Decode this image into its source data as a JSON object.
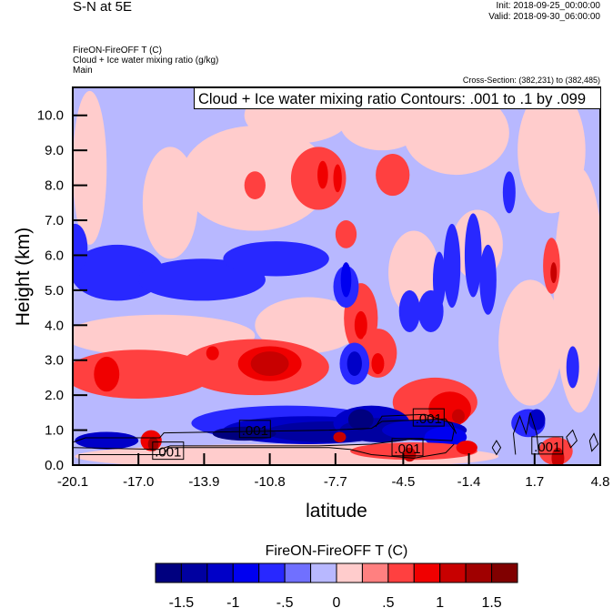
{
  "header": {
    "title": "S-N at 5E",
    "init": "Init: 2018-09-25_00:00:00",
    "valid": "Valid: 2018-09-30_06:00:00",
    "field1": "FireON-FireOFF T   (C)",
    "field2": "Cloud + Ice water mixing ratio   (g/kg)",
    "domain": "Main",
    "cross_section": "Cross-Section: (382,231) to (382,485)"
  },
  "chart_data": {
    "type": "heatmap",
    "title": "FireON-FireOFF T  (C)",
    "contour_info": "Cloud + Ice water mixing ratio Contours: .001 to .1 by .099",
    "xlabel": "latitude",
    "ylabel": "Height (km)",
    "xlim": [
      -20.1,
      4.8
    ],
    "ylim": [
      0,
      10.8
    ],
    "xticks": [
      -20.1,
      -17.0,
      -13.9,
      -10.8,
      -7.7,
      -4.5,
      -1.4,
      1.7,
      4.8
    ],
    "xtick_labels": [
      "-20.1",
      "-17.0",
      "-13.9",
      "-10.8",
      "-7.7",
      "-4.5",
      "-1.4",
      "1.7",
      "4.8"
    ],
    "yticks": [
      0,
      1,
      2,
      3,
      4,
      5,
      6,
      7,
      8,
      9,
      10
    ],
    "ytick_labels": [
      "0.0",
      "1.0",
      "2.0",
      "3.0",
      "4.0",
      "5.0",
      "6.0",
      "7.0",
      "8.0",
      "9.0",
      "10.0"
    ],
    "levels": [
      -1.5,
      -1.25,
      -1,
      -0.75,
      -0.5,
      -0.25,
      0,
      0.25,
      0.5,
      0.75,
      1,
      1.25,
      1.5
    ],
    "colors": [
      "#00007f",
      "#0000a0",
      "#0000c8",
      "#0000f0",
      "#2828ff",
      "#7070ff",
      "#b8b8ff",
      "#ffcccc",
      "#ff8080",
      "#ff4040",
      "#f00000",
      "#c80000",
      "#a00000",
      "#800000"
    ],
    "colorbar_labels": [
      "-1.5",
      "-1",
      "-.5",
      "0",
      ".5",
      "1",
      "1.5"
    ],
    "colorbar_label_levels": [
      -1.5,
      -1,
      -0.5,
      0,
      0.5,
      1,
      1.5
    ],
    "background_value": -0.1,
    "field_features_lat_z_rlat_rz_value": [
      [
        -19.3,
        8.5,
        0.8,
        2.2,
        0.1
      ],
      [
        -15.5,
        7.5,
        1.3,
        1.6,
        0.1
      ],
      [
        -11.5,
        8.2,
        3.5,
        1.5,
        0.1
      ],
      [
        -9.5,
        10,
        2.5,
        0.8,
        0.1
      ],
      [
        -5.5,
        9.8,
        2,
        0.8,
        0.1
      ],
      [
        -2,
        9.5,
        2.5,
        1.2,
        0.1
      ],
      [
        2.5,
        9,
        1.6,
        1.8,
        0.1
      ],
      [
        3.8,
        5,
        1.2,
        3.5,
        0.1
      ],
      [
        -4,
        5.5,
        1.2,
        1.2,
        0.1
      ],
      [
        -1,
        6.3,
        1.2,
        1,
        0.1
      ],
      [
        1.5,
        3.5,
        1.5,
        1.8,
        0.1
      ],
      [
        -16,
        3.7,
        4.5,
        0.6,
        0.1
      ],
      [
        -9,
        4.0,
        2.5,
        0.8,
        0.1
      ],
      [
        -8.5,
        8.2,
        1.3,
        0.9,
        0.6
      ],
      [
        -11.5,
        8.0,
        0.5,
        0.4,
        0.6
      ],
      [
        -7.2,
        6.6,
        0.5,
        0.4,
        0.6
      ],
      [
        -6.5,
        4.2,
        0.8,
        1.0,
        0.6
      ],
      [
        -5,
        8.3,
        0.8,
        0.6,
        0.6
      ],
      [
        2.5,
        5.7,
        0.4,
        0.8,
        0.6
      ],
      [
        -8.3,
        8.3,
        0.25,
        0.4,
        0.9
      ],
      [
        -7.6,
        8.2,
        0.2,
        0.4,
        0.9
      ],
      [
        -6.5,
        4.0,
        0.3,
        0.4,
        0.9
      ],
      [
        2.6,
        5.5,
        0.15,
        0.3,
        1.1
      ],
      [
        -18,
        5.5,
        2.2,
        0.8,
        -0.6
      ],
      [
        -14,
        5.3,
        3,
        0.6,
        -0.6
      ],
      [
        -10.5,
        5.9,
        2.5,
        0.5,
        -0.6
      ],
      [
        -20,
        6.2,
        0.6,
        0.7,
        -0.6
      ],
      [
        -7.2,
        5.1,
        0.6,
        0.6,
        -0.6
      ],
      [
        -7.2,
        5.3,
        0.25,
        0.5,
        -0.8
      ],
      [
        -4.2,
        4.4,
        0.5,
        0.6,
        -0.6
      ],
      [
        -3.2,
        4.4,
        0.6,
        0.6,
        -0.6
      ],
      [
        -2.2,
        5.7,
        0.4,
        1.2,
        -0.6
      ],
      [
        -1.2,
        6.0,
        0.4,
        1.2,
        -0.6
      ],
      [
        -2.8,
        5.3,
        0.3,
        0.8,
        -0.6
      ],
      [
        0.5,
        7.8,
        0.3,
        0.6,
        -0.6
      ],
      [
        -0.5,
        5.3,
        0.4,
        1,
        -0.6
      ],
      [
        3.5,
        2.8,
        0.3,
        0.6,
        -0.6
      ],
      [
        -17,
        2.6,
        3.5,
        0.7,
        0.6
      ],
      [
        -11.5,
        2.8,
        3.5,
        0.8,
        0.6
      ],
      [
        -18.5,
        2.6,
        0.6,
        0.5,
        0.9
      ],
      [
        -13.5,
        3.2,
        0.3,
        0.2,
        0.9
      ],
      [
        -10.8,
        2.9,
        1.5,
        0.5,
        0.9
      ],
      [
        -10.8,
        2.9,
        0.9,
        0.35,
        1.1
      ],
      [
        -3,
        1.8,
        2,
        0.7,
        0.6
      ],
      [
        -2.3,
        1.6,
        1,
        0.5,
        0.9
      ],
      [
        -1.9,
        1.4,
        0.3,
        0.2,
        1.1
      ],
      [
        -5.7,
        3.2,
        0.9,
        0.7,
        0.6
      ],
      [
        -5.7,
        2.9,
        0.3,
        0.3,
        0.9
      ],
      [
        -6.8,
        2.9,
        0.7,
        0.6,
        -0.6
      ],
      [
        -6.8,
        2.9,
        0.35,
        0.35,
        -1.1
      ],
      [
        -17,
        0.8,
        3.5,
        0.6,
        -0.1
      ],
      [
        -10,
        1.2,
        4.5,
        0.5,
        -0.6
      ],
      [
        -9,
        1.0,
        4,
        0.4,
        -1.1
      ],
      [
        -8,
        0.95,
        3,
        0.3,
        -1.5
      ],
      [
        -18.5,
        0.7,
        1.5,
        0.25,
        -1.1
      ],
      [
        -12,
        0.9,
        1.5,
        0.2,
        -1.6
      ],
      [
        -6,
        1.2,
        1.8,
        0.5,
        -1.1
      ],
      [
        -5.5,
        1.0,
        2,
        0.35,
        -1.4
      ],
      [
        -6.5,
        1.3,
        0.6,
        0.3,
        -1.8
      ],
      [
        -3.5,
        1.0,
        2,
        0.3,
        -1.2
      ],
      [
        -2.5,
        0.8,
        1,
        0.3,
        -0.8
      ],
      [
        1.4,
        1.2,
        0.8,
        0.4,
        -0.6
      ],
      [
        1.8,
        1.3,
        0.4,
        0.3,
        -1.1
      ],
      [
        -10,
        0.25,
        10,
        0.35,
        0.1
      ],
      [
        -16.4,
        0.7,
        0.5,
        0.3,
        0.9
      ],
      [
        -16.3,
        0.6,
        0.25,
        0.2,
        1.4
      ],
      [
        -7.5,
        0.8,
        0.3,
        0.15,
        1.1
      ],
      [
        -4,
        0.4,
        3,
        0.25,
        0.6
      ],
      [
        -4.2,
        0.3,
        0.3,
        0.2,
        1.1
      ],
      [
        2.7,
        0.4,
        0.8,
        0.4,
        0.6
      ],
      [
        2.8,
        0.2,
        0.3,
        0.3,
        1.1
      ],
      [
        -1.5,
        0.5,
        0.5,
        0.2,
        0.9
      ]
    ],
    "cloud_contours_lat_z": [
      [
        [
          -20.1,
          0.65
        ],
        [
          -19.5,
          0.78
        ],
        [
          -16,
          0.78
        ],
        [
          -15.8,
          0.92
        ],
        [
          -8,
          1.0
        ],
        [
          -6,
          1.05
        ],
        [
          -5.5,
          1.25
        ],
        [
          -2.5,
          1.32
        ],
        [
          -2.1,
          1.0
        ],
        [
          -2.2,
          0.7
        ],
        [
          -4,
          0.75
        ],
        [
          -6,
          0.6
        ],
        [
          -8.5,
          0.55
        ],
        [
          -15.5,
          0.55
        ],
        [
          -16,
          0.45
        ],
        [
          -20.1,
          0.5
        ]
      ],
      [
        [
          -19.8,
          0.0
        ],
        [
          -19.8,
          0.3
        ],
        [
          -15.8,
          0.3
        ],
        [
          -15.6,
          0.5
        ],
        [
          -8,
          0.5
        ],
        [
          -7,
          0.45
        ],
        [
          -6,
          0.3
        ],
        [
          -4,
          0.2
        ],
        [
          -2.5,
          0.35
        ],
        [
          -2.1,
          0.6
        ]
      ],
      [
        [
          -5.8,
          1.1
        ],
        [
          -5.5,
          1.4
        ],
        [
          -3.5,
          1.45
        ],
        [
          -2.2,
          1.2
        ],
        [
          -2.0,
          0.9
        ]
      ],
      [
        [
          0.8,
          0.3
        ],
        [
          0.7,
          0.9
        ],
        [
          1.0,
          1.4
        ],
        [
          1.3,
          0.9
        ],
        [
          1.5,
          1.5
        ],
        [
          1.8,
          0.9
        ],
        [
          1.9,
          0.3
        ]
      ],
      [
        [
          3.2,
          0.8
        ],
        [
          3.5,
          1.0
        ],
        [
          3.7,
          0.7
        ],
        [
          3.4,
          0.5
        ],
        [
          3.2,
          0.8
        ]
      ],
      [
        [
          4.3,
          0.7
        ],
        [
          4.5,
          0.9
        ],
        [
          4.7,
          0.6
        ],
        [
          4.4,
          0.4
        ],
        [
          4.3,
          0.7
        ]
      ],
      [
        [
          -0.3,
          0.5
        ],
        [
          -0.1,
          0.7
        ],
        [
          0.1,
          0.5
        ],
        [
          -0.1,
          0.3
        ],
        [
          -0.3,
          0.5
        ]
      ]
    ],
    "contour_labels": [
      {
        "text": ".001",
        "lat": -15.6,
        "z": 0.4
      },
      {
        "text": ".001",
        "lat": -11.5,
        "z": 1.02
      },
      {
        "text": ".001",
        "lat": -4.3,
        "z": 0.5
      },
      {
        "text": ".001",
        "lat": -3.3,
        "z": 1.35
      },
      {
        "text": ".001",
        "lat": 2.3,
        "z": 0.55
      }
    ]
  }
}
